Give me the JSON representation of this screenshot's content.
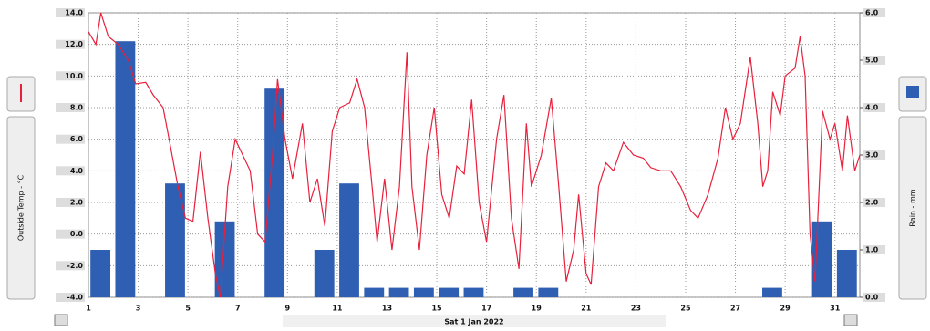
{
  "chart_data": {
    "type": "combo",
    "xlabel": "Sat 1 Jan 2022",
    "ylabel": "Outside Temp - °C",
    "y2label": "Rain - mm",
    "xlim": [
      1,
      32
    ],
    "xticks": [
      1,
      3,
      5,
      7,
      9,
      11,
      13,
      15,
      17,
      19,
      21,
      23,
      25,
      27,
      29,
      31
    ],
    "ylim": [
      -4,
      14
    ],
    "yticks": [
      {
        "value": -4,
        "label": "-4.0"
      },
      {
        "value": -2,
        "label": "-2.0"
      },
      {
        "value": 0,
        "label": "0.0"
      },
      {
        "value": 2,
        "label": "2.0"
      },
      {
        "value": 4,
        "label": "4.0"
      },
      {
        "value": 6,
        "label": "6.0"
      },
      {
        "value": 8,
        "label": "8.0"
      },
      {
        "value": 10,
        "label": "10.0"
      },
      {
        "value": 12,
        "label": "12.0"
      },
      {
        "value": 14,
        "label": "14.0"
      }
    ],
    "y2lim": [
      0,
      6
    ],
    "y2ticks": [
      {
        "value": 0,
        "label": "0.0"
      },
      {
        "value": 1,
        "label": "1.0"
      },
      {
        "value": 2,
        "label": "2.0"
      },
      {
        "value": 3,
        "label": "3.0"
      },
      {
        "value": 4,
        "label": "4.0"
      },
      {
        "value": 5,
        "label": "5.0"
      },
      {
        "value": 6,
        "label": "6.0"
      }
    ],
    "grid": true,
    "series": [
      {
        "type": "line",
        "color": "#e8203c",
        "x": [
          1.0,
          1.3,
          1.5,
          1.8,
          2.2,
          2.6,
          2.9,
          3.3,
          3.6,
          4.0,
          4.3,
          4.6,
          4.9,
          5.2,
          5.5,
          5.8,
          6.1,
          6.3,
          6.6,
          6.9,
          7.2,
          7.5,
          7.8,
          8.1,
          8.4,
          8.6,
          8.9,
          9.2,
          9.6,
          9.9,
          10.2,
          10.5,
          10.8,
          11.1,
          11.5,
          11.8,
          12.1,
          12.4,
          12.6,
          12.9,
          13.2,
          13.5,
          13.8,
          14.0,
          14.3,
          14.6,
          14.9,
          15.2,
          15.5,
          15.8,
          16.1,
          16.4,
          16.7,
          17.0,
          17.4,
          17.7,
          18.0,
          18.3,
          18.6,
          18.8,
          19.2,
          19.6,
          19.9,
          20.2,
          20.5,
          20.7,
          21.0,
          21.2,
          21.5,
          21.8,
          22.1,
          22.5,
          22.9,
          23.3,
          23.6,
          24.0,
          24.4,
          24.8,
          25.2,
          25.5,
          25.9,
          26.3,
          26.6,
          26.9,
          27.2,
          27.6,
          27.9,
          28.1,
          28.3,
          28.5,
          28.8,
          29.0,
          29.4,
          29.6,
          29.8,
          30.0,
          30.2,
          30.5,
          30.8,
          31.0,
          31.3,
          31.5,
          31.8,
          32.0
        ],
        "values": [
          12.8,
          12.0,
          14.0,
          12.5,
          12.0,
          11.0,
          9.5,
          9.6,
          8.8,
          8.0,
          5.5,
          3.0,
          1.0,
          0.8,
          5.2,
          1.0,
          -2.5,
          -4.0,
          3.0,
          6.0,
          5.0,
          4.0,
          0.0,
          -0.5,
          5.0,
          9.8,
          6.0,
          3.5,
          7.0,
          2.0,
          3.5,
          0.5,
          6.5,
          8.0,
          8.3,
          9.8,
          8.0,
          3.0,
          -0.5,
          3.5,
          -1.0,
          3.0,
          11.5,
          3.0,
          -1.0,
          5.0,
          8.0,
          2.5,
          1.0,
          4.3,
          3.8,
          8.5,
          2.0,
          -0.5,
          6.0,
          8.8,
          1.0,
          -2.2,
          7.0,
          3.0,
          5.0,
          8.6,
          3.0,
          -3.0,
          -1.0,
          2.5,
          -2.5,
          -3.2,
          3.0,
          4.5,
          4.0,
          5.8,
          5.0,
          4.8,
          4.2,
          4.0,
          4.0,
          3.0,
          1.5,
          1.0,
          2.5,
          4.8,
          8.0,
          6.0,
          7.0,
          11.2,
          7.0,
          3.0,
          4.0,
          9.0,
          7.5,
          10.0,
          10.5,
          12.5,
          10.0,
          0.0,
          -3.0,
          7.8,
          6.0,
          7.0,
          4.0,
          7.5,
          4.0,
          5.0
        ]
      },
      {
        "type": "bar",
        "axis": "y2",
        "color": "#2f5fb3",
        "x": [
          1,
          2,
          3,
          4,
          5,
          6,
          7,
          8,
          9,
          10,
          11,
          12,
          13,
          14,
          15,
          16,
          17,
          18,
          19,
          20,
          21,
          22,
          23,
          24,
          25,
          26,
          27,
          28,
          29,
          30,
          31
        ],
        "values": [
          1.0,
          5.4,
          0,
          2.4,
          0,
          1.6,
          0,
          4.4,
          0,
          1.0,
          2.4,
          0.2,
          0.2,
          0.2,
          0.2,
          0.2,
          0,
          0.2,
          0.2,
          0,
          0,
          0,
          0,
          0,
          0,
          0,
          0,
          0.2,
          0,
          1.6,
          1.0
        ]
      }
    ]
  }
}
